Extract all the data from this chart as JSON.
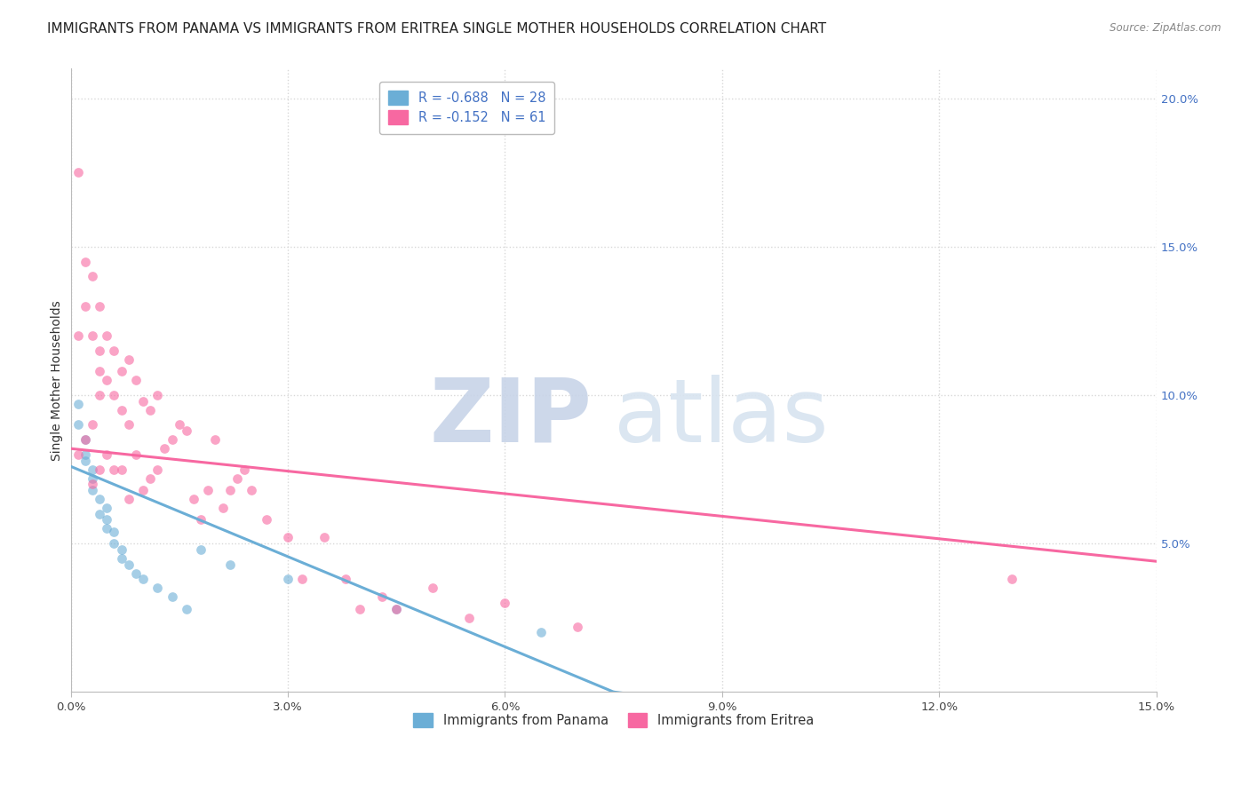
{
  "title": "IMMIGRANTS FROM PANAMA VS IMMIGRANTS FROM ERITREA SINGLE MOTHER HOUSEHOLDS CORRELATION CHART",
  "source": "Source: ZipAtlas.com",
  "ylabel": "Single Mother Households",
  "legend_entries": [
    {
      "label": "R = -0.688   N = 28",
      "color": "#6baed6"
    },
    {
      "label": "R = -0.152   N = 61",
      "color": "#f768a1"
    }
  ],
  "legend_labels_bottom": [
    "Immigrants from Panama",
    "Immigrants from Eritrea"
  ],
  "xlim": [
    0.0,
    0.15
  ],
  "ylim": [
    0.0,
    0.21
  ],
  "xticks": [
    0.0,
    0.03,
    0.06,
    0.09,
    0.12,
    0.15
  ],
  "xtick_labels": [
    "0.0%",
    "3.0%",
    "6.0%",
    "9.0%",
    "12.0%",
    "15.0%"
  ],
  "yticks_right": [
    0.05,
    0.1,
    0.15,
    0.2
  ],
  "ytick_labels_right": [
    "5.0%",
    "10.0%",
    "15.0%",
    "20.0%"
  ],
  "blue_color": "#6baed6",
  "pink_color": "#f768a1",
  "blue_scatter": {
    "x": [
      0.001,
      0.001,
      0.002,
      0.002,
      0.002,
      0.003,
      0.003,
      0.003,
      0.004,
      0.004,
      0.005,
      0.005,
      0.005,
      0.006,
      0.006,
      0.007,
      0.007,
      0.008,
      0.009,
      0.01,
      0.012,
      0.014,
      0.016,
      0.018,
      0.022,
      0.03,
      0.045,
      0.065
    ],
    "y": [
      0.097,
      0.09,
      0.085,
      0.08,
      0.078,
      0.075,
      0.072,
      0.068,
      0.065,
      0.06,
      0.062,
      0.058,
      0.055,
      0.054,
      0.05,
      0.048,
      0.045,
      0.043,
      0.04,
      0.038,
      0.035,
      0.032,
      0.028,
      0.048,
      0.043,
      0.038,
      0.028,
      0.02
    ]
  },
  "pink_scatter": {
    "x": [
      0.001,
      0.001,
      0.001,
      0.002,
      0.002,
      0.002,
      0.003,
      0.003,
      0.003,
      0.003,
      0.004,
      0.004,
      0.004,
      0.004,
      0.005,
      0.005,
      0.005,
      0.006,
      0.006,
      0.006,
      0.007,
      0.007,
      0.007,
      0.008,
      0.008,
      0.008,
      0.009,
      0.009,
      0.01,
      0.01,
      0.011,
      0.011,
      0.012,
      0.012,
      0.013,
      0.014,
      0.015,
      0.016,
      0.017,
      0.018,
      0.019,
      0.02,
      0.021,
      0.022,
      0.023,
      0.024,
      0.025,
      0.027,
      0.03,
      0.032,
      0.035,
      0.038,
      0.04,
      0.043,
      0.045,
      0.05,
      0.055,
      0.06,
      0.07,
      0.13,
      0.004
    ],
    "y": [
      0.175,
      0.12,
      0.08,
      0.145,
      0.13,
      0.085,
      0.14,
      0.12,
      0.09,
      0.07,
      0.13,
      0.115,
      0.1,
      0.075,
      0.12,
      0.105,
      0.08,
      0.115,
      0.1,
      0.075,
      0.108,
      0.095,
      0.075,
      0.112,
      0.09,
      0.065,
      0.105,
      0.08,
      0.098,
      0.068,
      0.095,
      0.072,
      0.1,
      0.075,
      0.082,
      0.085,
      0.09,
      0.088,
      0.065,
      0.058,
      0.068,
      0.085,
      0.062,
      0.068,
      0.072,
      0.075,
      0.068,
      0.058,
      0.052,
      0.038,
      0.052,
      0.038,
      0.028,
      0.032,
      0.028,
      0.035,
      0.025,
      0.03,
      0.022,
      0.038,
      0.108
    ]
  },
  "blue_line": {
    "x0": 0.0,
    "y0": 0.076,
    "x1": 0.075,
    "y1": 0.0
  },
  "pink_line": {
    "x0": 0.0,
    "y0": 0.082,
    "x1": 0.15,
    "y1": 0.044
  },
  "watermark_zip": "ZIP",
  "watermark_atlas": "atlas",
  "background_color": "#ffffff",
  "grid_color": "#d8d8d8",
  "title_fontsize": 11,
  "axis_label_fontsize": 10,
  "tick_fontsize": 9.5,
  "scatter_alpha": 0.6,
  "scatter_size": 60
}
